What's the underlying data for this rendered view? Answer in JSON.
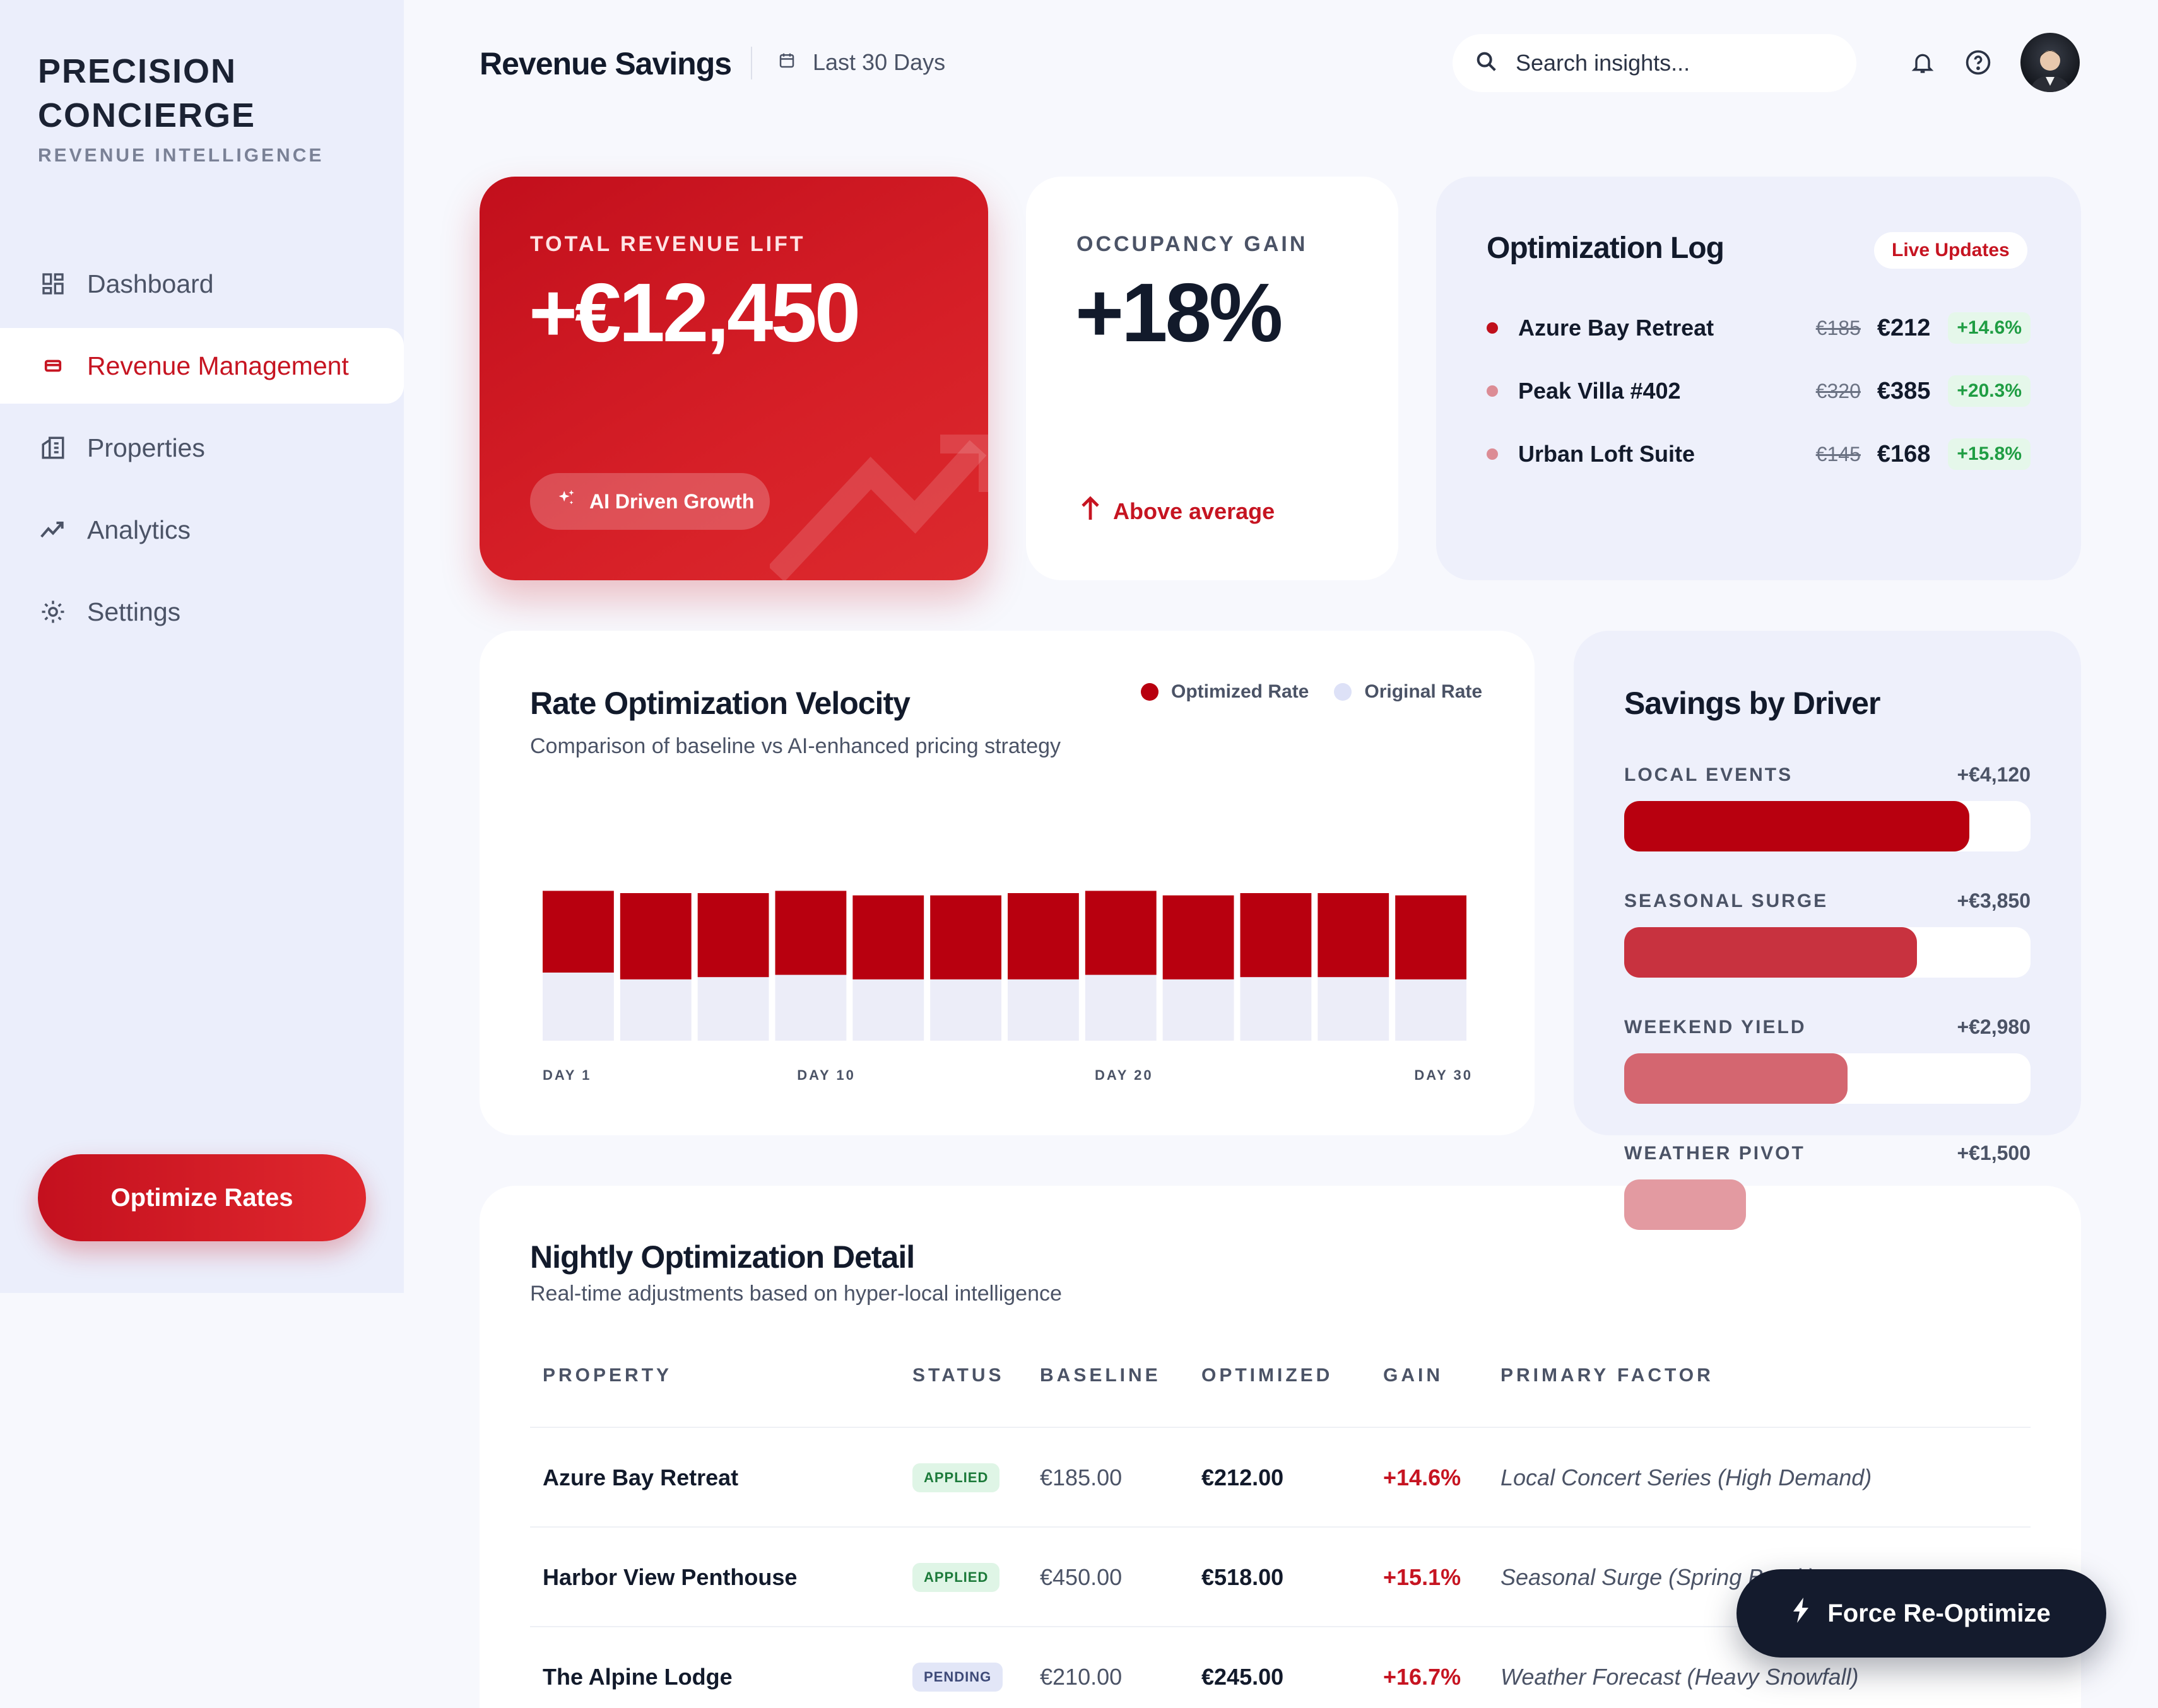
{
  "sidebar": {
    "brand_title": "PRECISION CONCIERGE",
    "brand_subtitle": "REVENUE INTELLIGENCE",
    "items": [
      {
        "label": "Dashboard",
        "icon": "grid-icon",
        "active": false
      },
      {
        "label": "Revenue Management",
        "icon": "card-icon",
        "active": true
      },
      {
        "label": "Properties",
        "icon": "building-icon",
        "active": false
      },
      {
        "label": "Analytics",
        "icon": "trend-icon",
        "active": false
      },
      {
        "label": "Settings",
        "icon": "gear-icon",
        "active": false
      }
    ],
    "cta_label": "Optimize Rates"
  },
  "header": {
    "title": "Revenue Savings",
    "date_range": "Last 30 Days",
    "search_placeholder": "Search insights..."
  },
  "kpi_revenue": {
    "label": "TOTAL REVENUE LIFT",
    "value": "+€12,450",
    "badge": "AI Driven Growth"
  },
  "kpi_occupancy": {
    "label": "OCCUPANCY GAIN",
    "value": "+18%",
    "note": "Above average"
  },
  "optimization_log": {
    "title": "Optimization Log",
    "badge": "Live Updates",
    "rows": [
      {
        "name": "Azure Bay Retreat",
        "old": "€185",
        "new": "€212",
        "pct": "+14.6%",
        "dot": "#c0101c"
      },
      {
        "name": "Peak Villa #402",
        "old": "€320",
        "new": "€385",
        "pct": "+20.3%",
        "dot": "#dc8c95"
      },
      {
        "name": "Urban Loft Suite",
        "old": "€145",
        "new": "€168",
        "pct": "+15.8%",
        "dot": "#dc8c95"
      }
    ]
  },
  "chart_data": {
    "type": "bar",
    "title": "Rate Optimization Velocity",
    "subtitle": "Comparison of baseline vs AI-enhanced pricing strategy",
    "legend": [
      "Optimized Rate",
      "Original Rate"
    ],
    "x_tick_labels": [
      "DAY 1",
      "DAY 10",
      "DAY 20",
      "DAY 30"
    ],
    "series": [
      {
        "name": "Optimized Rate",
        "color": "#b8000f",
        "values": [
          0.36,
          0.38,
          0.37,
          0.37,
          0.37,
          0.37,
          0.38,
          0.37,
          0.37,
          0.37,
          0.37,
          0.37
        ]
      },
      {
        "name": "Original Rate",
        "color": "#ecedf8",
        "values": [
          0.3,
          0.27,
          0.28,
          0.29,
          0.27,
          0.27,
          0.27,
          0.29,
          0.27,
          0.28,
          0.28,
          0.27
        ]
      }
    ],
    "ylim": [
      0,
      1
    ],
    "grid": false,
    "legend_position": "top-right"
  },
  "savings_by_driver": {
    "title": "Savings by Driver",
    "drivers": [
      {
        "label": "LOCAL EVENTS",
        "value": "+€4,120",
        "fraction": 0.85,
        "color": "#b8000f"
      },
      {
        "label": "SEASONAL SURGE",
        "value": "+€3,850",
        "fraction": 0.72,
        "color": "#c8323f"
      },
      {
        "label": "WEEKEND YIELD",
        "value": "+€2,980",
        "fraction": 0.55,
        "color": "#d46670"
      },
      {
        "label": "WEATHER PIVOT",
        "value": "+€1,500",
        "fraction": 0.3,
        "color": "#e39aa1"
      }
    ]
  },
  "nightly_table": {
    "title": "Nightly Optimization Detail",
    "subtitle": "Real-time adjustments based on hyper-local intelligence",
    "headers": [
      "PROPERTY",
      "STATUS",
      "BASELINE",
      "OPTIMIZED",
      "GAIN",
      "PRIMARY FACTOR"
    ],
    "rows": [
      {
        "property": "Azure Bay Retreat",
        "status": "APPLIED",
        "baseline": "€185.00",
        "optimized": "€212.00",
        "gain": "+14.6%",
        "factor": "Local Concert Series (High Demand)"
      },
      {
        "property": "Harbor View Penthouse",
        "status": "APPLIED",
        "baseline": "€450.00",
        "optimized": "€518.00",
        "gain": "+15.1%",
        "factor": "Seasonal Surge (Spring Break)"
      },
      {
        "property": "The Alpine Lodge",
        "status": "PENDING",
        "baseline": "€210.00",
        "optimized": "€245.00",
        "gain": "+16.7%",
        "factor": "Weather Forecast (Heavy Snowfall)"
      }
    ]
  },
  "fab": {
    "label": "Force Re-Optimize"
  }
}
